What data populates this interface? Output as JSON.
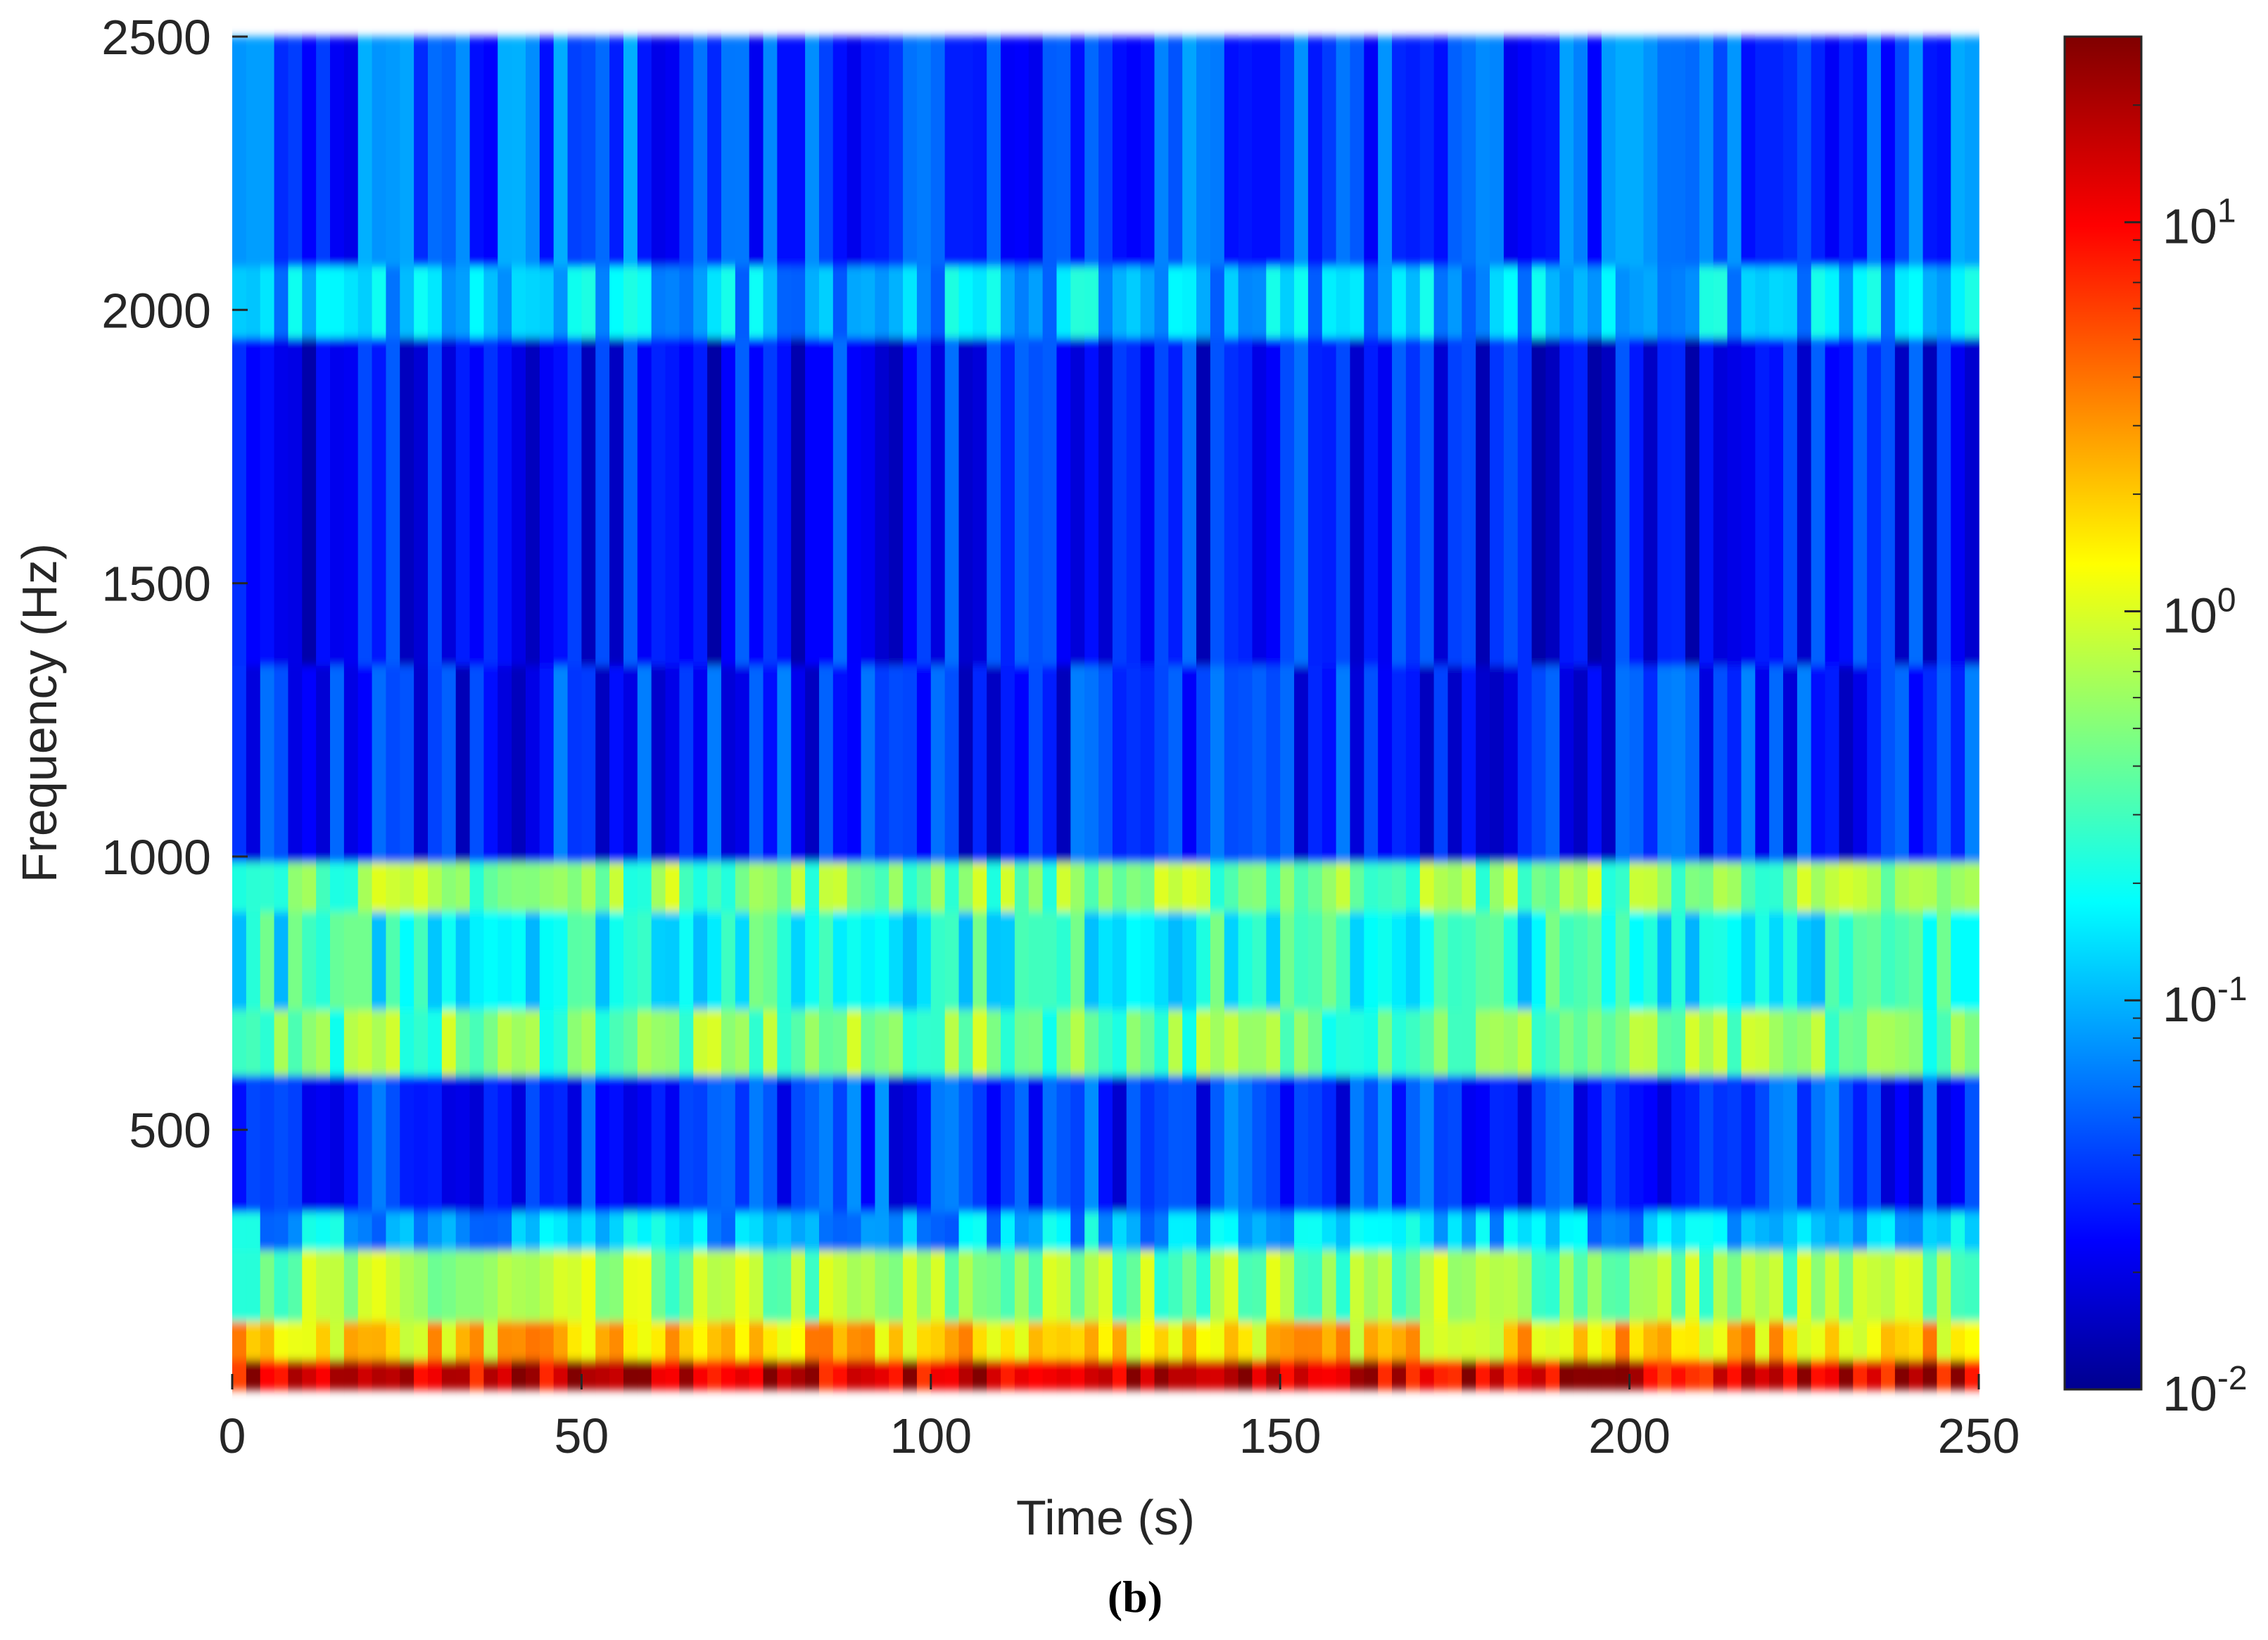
{
  "chart_data": {
    "type": "heatmap",
    "title": "",
    "xlabel": "Time (s)",
    "ylabel": "Frequency (Hz)",
    "xlim": [
      0,
      250
    ],
    "ylim": [
      25,
      2500
    ],
    "xticks": [
      "0",
      "50",
      "100",
      "150",
      "200",
      "250"
    ],
    "xtick_values": [
      0,
      50,
      100,
      150,
      200,
      250
    ],
    "yticks": [
      "500",
      "1000",
      "1500",
      "2000",
      "2500"
    ],
    "ytick_values": [
      500,
      1000,
      1500,
      2000,
      2500
    ],
    "colorbar": {
      "scale": "log",
      "range": [
        0.01,
        30
      ],
      "ticks": [
        {
          "base": "10",
          "exp": "-2",
          "value": 0.01
        },
        {
          "base": "10",
          "exp": "-1",
          "value": 0.1
        },
        {
          "base": "10",
          "exp": "0",
          "value": 1
        },
        {
          "base": "10",
          "exp": "1",
          "value": 10
        }
      ],
      "colormap": "jet"
    },
    "frequency_bands": [
      {
        "f_low": 25,
        "f_high": 80,
        "level": 15
      },
      {
        "f_low": 80,
        "f_high": 150,
        "level": 2.0
      },
      {
        "f_low": 150,
        "f_high": 280,
        "level": 0.6
      },
      {
        "f_low": 280,
        "f_high": 350,
        "level": 0.12
      },
      {
        "f_low": 350,
        "f_high": 600,
        "level": 0.04
      },
      {
        "f_low": 600,
        "f_high": 720,
        "level": 0.5
      },
      {
        "f_low": 720,
        "f_high": 900,
        "level": 0.25
      },
      {
        "f_low": 900,
        "f_high": 990,
        "level": 0.55
      },
      {
        "f_low": 990,
        "f_high": 1350,
        "level": 0.035
      },
      {
        "f_low": 1350,
        "f_high": 1950,
        "level": 0.03
      },
      {
        "f_low": 1950,
        "f_high": 2080,
        "level": 0.12
      },
      {
        "f_low": 2080,
        "f_high": 2500,
        "level": 0.05
      }
    ],
    "caption": "(b)"
  }
}
